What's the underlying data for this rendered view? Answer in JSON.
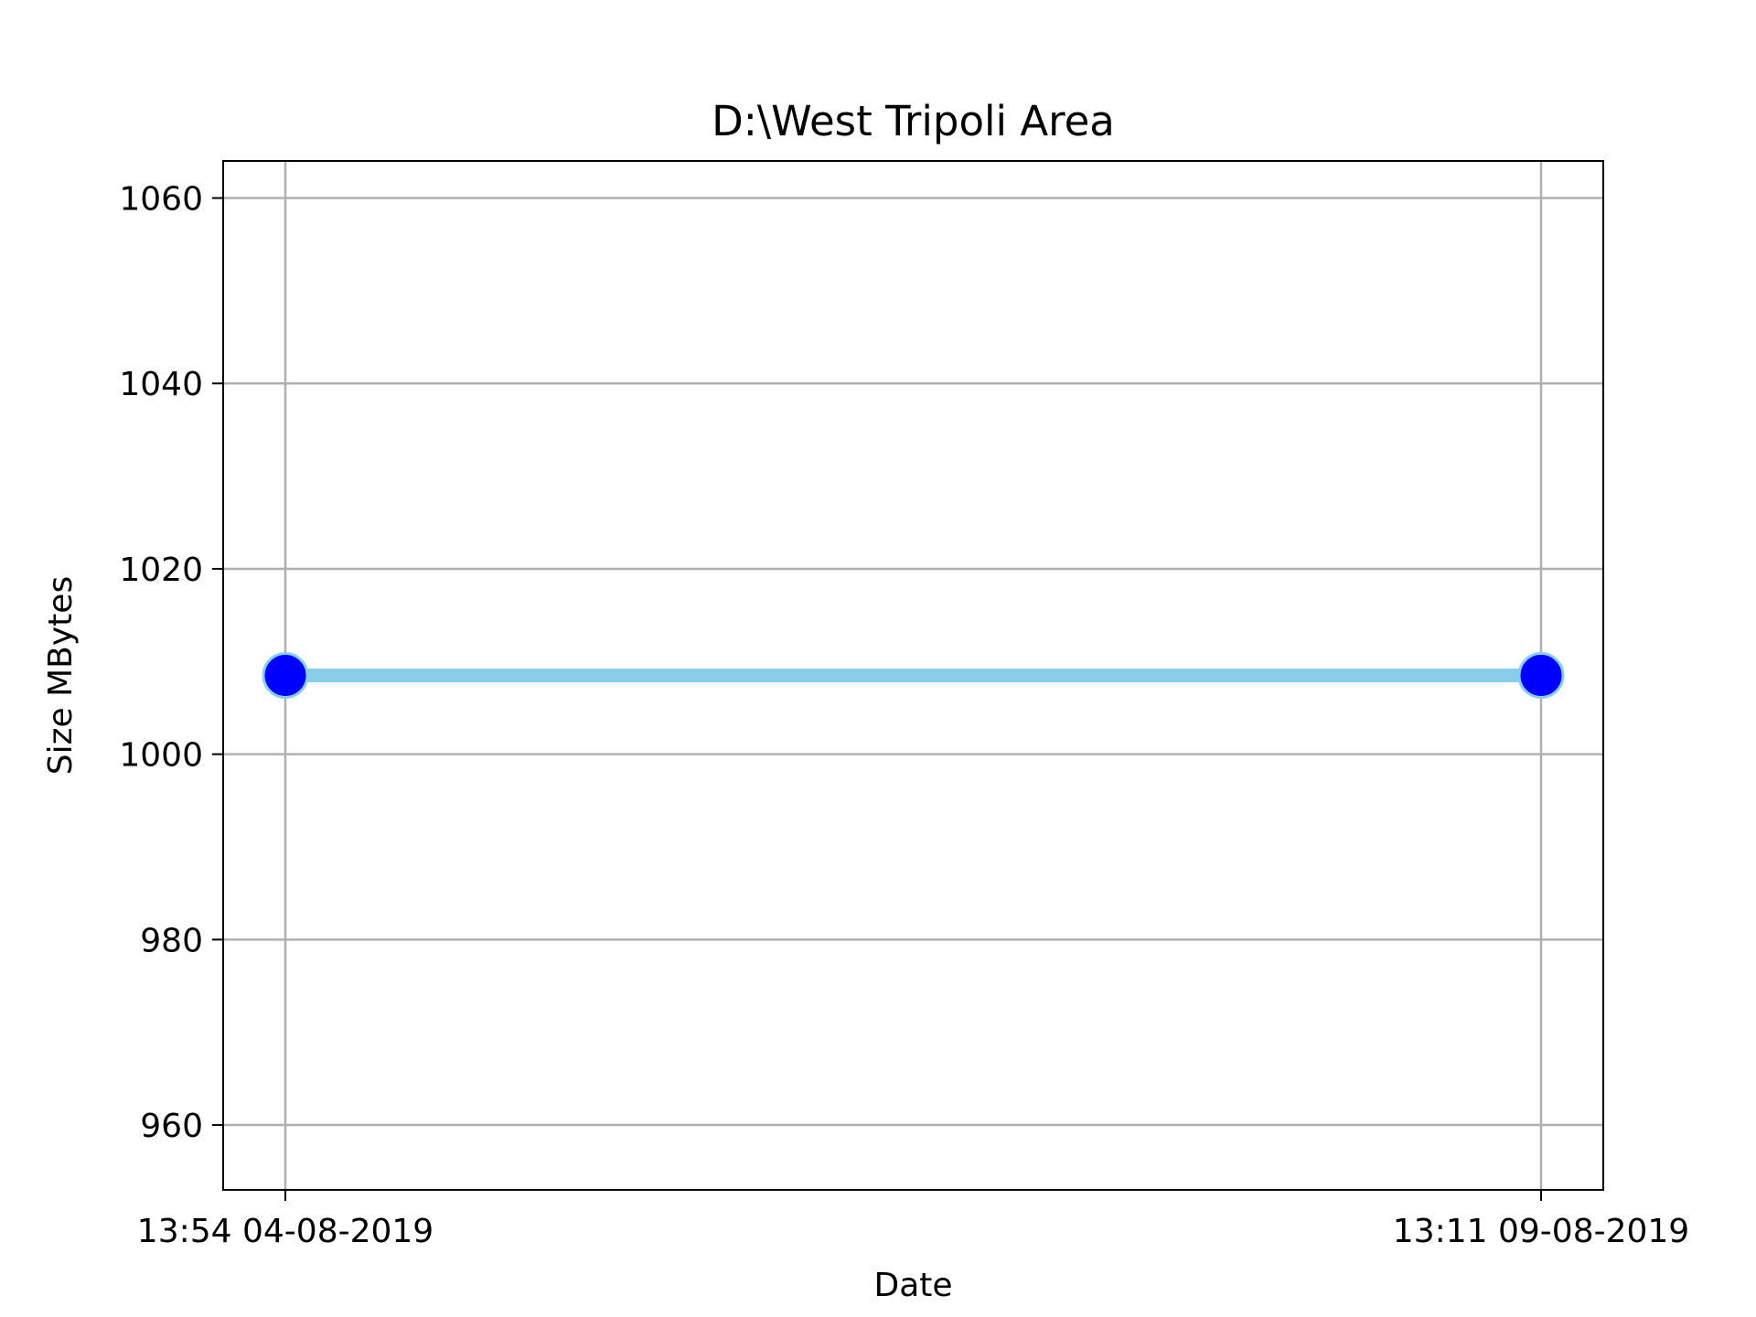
{
  "chart_data": {
    "type": "line",
    "title": "D:\\West Tripoli Area",
    "xlabel": "Date",
    "ylabel": "Size MBytes",
    "x": [
      "13:54 04-08-2019",
      "13:11 09-08-2019"
    ],
    "xticks": [
      "13:54 04-08-2019",
      "13:11 09-08-2019"
    ],
    "series": [
      {
        "values": [
          1008.5,
          1008.5
        ]
      }
    ],
    "ylim": [
      953,
      1064
    ],
    "yticks": [
      960,
      980,
      1000,
      1020,
      1040,
      1060
    ],
    "grid": true,
    "line_color": "#87ceeb",
    "marker_color": "#0000ff",
    "marker_edge_color": "#87ceeb"
  }
}
